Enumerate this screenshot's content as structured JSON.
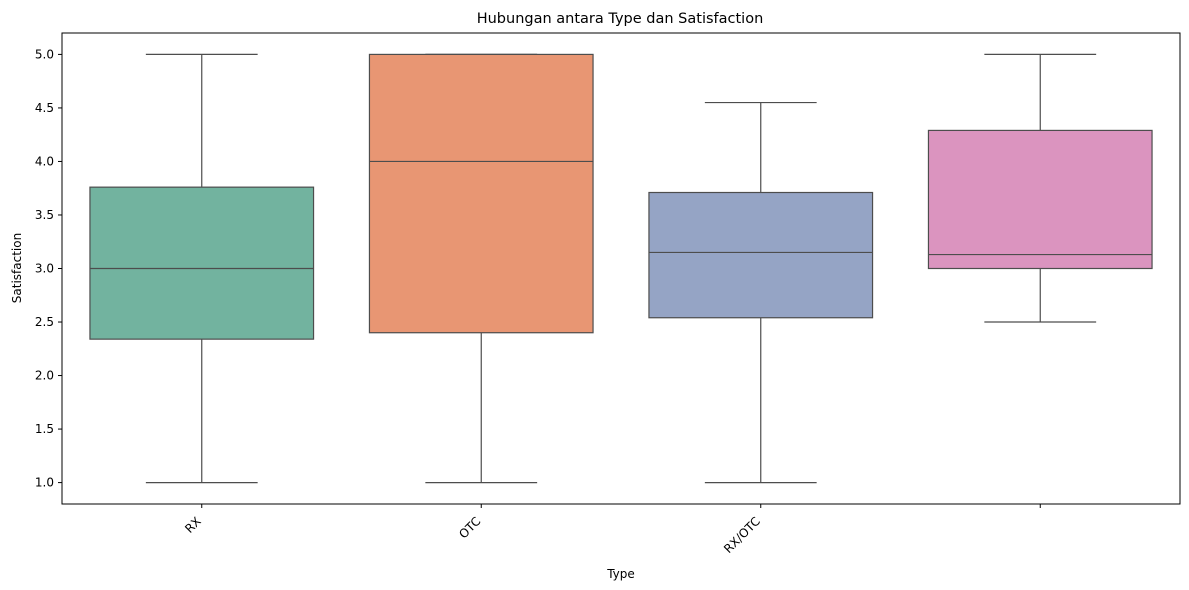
{
  "chart_data": {
    "type": "box",
    "title": "Hubungan antara Type dan Satisfaction",
    "xlabel": "Type",
    "ylabel": "Satisfaction",
    "ylim": [
      0.8,
      5.2
    ],
    "yticks": [
      "1.0",
      "1.5",
      "2.0",
      "2.5",
      "3.0",
      "3.5",
      "4.0",
      "4.5",
      "5.0"
    ],
    "grid": false,
    "categories": [
      "RX",
      "OTC",
      "RX/OTC",
      ""
    ],
    "boxes": [
      {
        "category": "RX",
        "whisker_low": 1.0,
        "q1": 2.34,
        "median": 3.0,
        "q3": 3.76,
        "whisker_high": 5.0,
        "color": "#72b39f"
      },
      {
        "category": "OTC",
        "whisker_low": 1.0,
        "q1": 2.4,
        "median": 4.0,
        "q3": 5.0,
        "whisker_high": 5.0,
        "color": "#e89673"
      },
      {
        "category": "RX/OTC",
        "whisker_low": 1.0,
        "q1": 2.54,
        "median": 3.15,
        "q3": 3.71,
        "whisker_high": 4.55,
        "color": "#95a4c5"
      },
      {
        "category": "",
        "whisker_low": 2.5,
        "q1": 3.0,
        "median": 3.13,
        "q3": 4.29,
        "whisker_high": 5.0,
        "color": "#db94bf"
      }
    ]
  }
}
